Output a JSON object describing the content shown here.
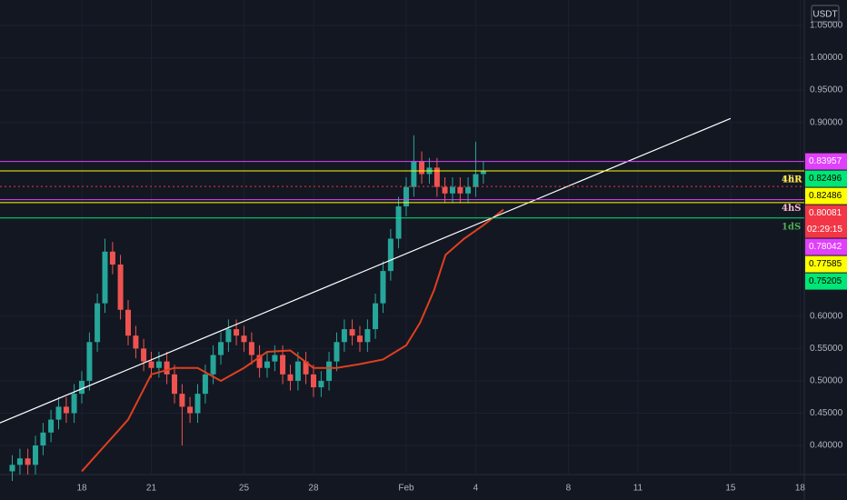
{
  "chart_data": {
    "type": "candlestick",
    "currency": "USDT",
    "background": "#131722",
    "up_color": "#26a69a",
    "down_color": "#ef5350",
    "grid": true,
    "xlim": [
      14.47,
      49.18
    ],
    "ylim": [
      0.355,
      1.0894
    ],
    "xticks": [
      {
        "value": 18,
        "label": "18"
      },
      {
        "value": 21,
        "label": "21"
      },
      {
        "value": 25,
        "label": "25"
      },
      {
        "value": 28,
        "label": "28"
      },
      {
        "value": 32,
        "label": "Feb"
      },
      {
        "value": 35,
        "label": "4"
      },
      {
        "value": 39,
        "label": "8"
      },
      {
        "value": 42,
        "label": "11"
      },
      {
        "value": 46,
        "label": "15"
      },
      {
        "value": 49,
        "label": "18"
      }
    ],
    "yticks": [
      {
        "value": 1.05,
        "label": "1.05000"
      },
      {
        "value": 1.0,
        "label": "1.00000"
      },
      {
        "value": 0.95,
        "label": "0.95000"
      },
      {
        "value": 0.9,
        "label": "0.90000"
      },
      {
        "value": 0.6,
        "label": "0.60000"
      },
      {
        "value": 0.55,
        "label": "0.55000"
      },
      {
        "value": 0.5,
        "label": "0.50000"
      },
      {
        "value": 0.45,
        "label": "0.45000"
      },
      {
        "value": 0.4,
        "label": "0.40000"
      }
    ],
    "candles": {
      "x": [
        15,
        15.33,
        15.67,
        16,
        16.33,
        16.67,
        17,
        17.33,
        17.67,
        18,
        18.33,
        18.67,
        19,
        19.33,
        19.67,
        20,
        20.33,
        20.67,
        21,
        21.33,
        21.67,
        22,
        22.33,
        22.67,
        23,
        23.33,
        23.67,
        24,
        24.33,
        24.67,
        25,
        25.33,
        25.67,
        26,
        26.33,
        26.67,
        27,
        27.33,
        27.67,
        28,
        28.33,
        28.67,
        29,
        29.33,
        29.67,
        30,
        30.33,
        30.67,
        31,
        31.33,
        31.67,
        32,
        32.33,
        32.67,
        33,
        33.33,
        33.67,
        34,
        34.33,
        34.67,
        35,
        35.33
      ],
      "open": [
        0.36,
        0.37,
        0.38,
        0.37,
        0.4,
        0.42,
        0.44,
        0.46,
        0.45,
        0.48,
        0.5,
        0.56,
        0.62,
        0.7,
        0.68,
        0.61,
        0.57,
        0.55,
        0.53,
        0.52,
        0.53,
        0.51,
        0.48,
        0.46,
        0.45,
        0.48,
        0.51,
        0.54,
        0.56,
        0.58,
        0.57,
        0.56,
        0.54,
        0.52,
        0.53,
        0.54,
        0.51,
        0.5,
        0.53,
        0.51,
        0.49,
        0.5,
        0.53,
        0.56,
        0.58,
        0.57,
        0.56,
        0.58,
        0.62,
        0.67,
        0.72,
        0.77,
        0.8,
        0.84,
        0.82,
        0.83,
        0.8,
        0.79,
        0.8,
        0.79,
        0.8,
        0.82
      ],
      "high": [
        0.385,
        0.395,
        0.395,
        0.415,
        0.435,
        0.455,
        0.475,
        0.475,
        0.495,
        0.515,
        0.575,
        0.635,
        0.72,
        0.715,
        0.695,
        0.625,
        0.585,
        0.565,
        0.545,
        0.545,
        0.545,
        0.525,
        0.495,
        0.475,
        0.495,
        0.525,
        0.555,
        0.575,
        0.595,
        0.595,
        0.585,
        0.575,
        0.555,
        0.545,
        0.555,
        0.555,
        0.525,
        0.545,
        0.545,
        0.525,
        0.515,
        0.545,
        0.575,
        0.595,
        0.595,
        0.585,
        0.595,
        0.635,
        0.685,
        0.735,
        0.785,
        0.815,
        0.88,
        0.855,
        0.845,
        0.845,
        0.815,
        0.815,
        0.815,
        0.815,
        0.87,
        0.84
      ],
      "low": [
        0.345,
        0.355,
        0.355,
        0.355,
        0.385,
        0.405,
        0.425,
        0.435,
        0.435,
        0.465,
        0.485,
        0.545,
        0.605,
        0.665,
        0.595,
        0.555,
        0.535,
        0.515,
        0.505,
        0.505,
        0.495,
        0.465,
        0.4,
        0.435,
        0.435,
        0.465,
        0.495,
        0.525,
        0.545,
        0.555,
        0.545,
        0.525,
        0.505,
        0.505,
        0.515,
        0.495,
        0.485,
        0.485,
        0.495,
        0.475,
        0.475,
        0.485,
        0.515,
        0.545,
        0.555,
        0.545,
        0.545,
        0.565,
        0.605,
        0.655,
        0.705,
        0.755,
        0.785,
        0.805,
        0.805,
        0.785,
        0.775,
        0.775,
        0.775,
        0.775,
        0.785,
        0.805
      ],
      "close": [
        0.37,
        0.38,
        0.37,
        0.4,
        0.42,
        0.44,
        0.46,
        0.45,
        0.48,
        0.5,
        0.56,
        0.62,
        0.7,
        0.68,
        0.61,
        0.57,
        0.55,
        0.53,
        0.52,
        0.53,
        0.51,
        0.48,
        0.46,
        0.45,
        0.48,
        0.51,
        0.54,
        0.56,
        0.58,
        0.57,
        0.56,
        0.54,
        0.52,
        0.53,
        0.54,
        0.51,
        0.5,
        0.53,
        0.51,
        0.49,
        0.5,
        0.53,
        0.56,
        0.58,
        0.57,
        0.56,
        0.58,
        0.62,
        0.67,
        0.72,
        0.77,
        0.8,
        0.84,
        0.82,
        0.83,
        0.8,
        0.79,
        0.8,
        0.79,
        0.8,
        0.82,
        0.825
      ]
    },
    "moving_average": {
      "color": "#e0401f",
      "x": [
        18,
        19,
        20,
        21,
        22,
        23,
        24,
        25,
        26,
        27,
        28,
        29,
        30,
        31,
        32,
        32.6,
        33.2,
        33.7,
        34.5,
        35.3,
        36.2
      ],
      "values": [
        0.36,
        0.4,
        0.44,
        0.51,
        0.52,
        0.52,
        0.5,
        0.52,
        0.545,
        0.547,
        0.52,
        0.52,
        0.526,
        0.533,
        0.555,
        0.59,
        0.64,
        0.695,
        0.72,
        0.74,
        0.765
      ]
    },
    "trendline": {
      "color": "#ffffff",
      "x": [
        14.47,
        46
      ],
      "values": [
        0.435,
        0.906
      ]
    },
    "levels": [
      {
        "value": 0.83957,
        "color": "#e040fb",
        "text_color": "#ffffff"
      },
      {
        "value": 0.82496,
        "color": "#00e676",
        "text_color": "#000000",
        "tag": "1dR",
        "tag_color": "#8a7fa8"
      },
      {
        "value": 0.82486,
        "color": "#ffff00",
        "text_color": "#000000",
        "tag": "4hR",
        "tag_color": "#ffeb3b"
      },
      {
        "value": 0.80081,
        "color": "#f23645",
        "text_color": "#ffffff",
        "dashed": true,
        "countdown": "02:29:15"
      },
      {
        "value": 0.78042,
        "color": "#e040fb",
        "text_color": "#ffffff",
        "tag": "4hS",
        "tag_color": "#f8bbd0"
      },
      {
        "value": 0.77585,
        "color": "#ffff00",
        "text_color": "#000000"
      },
      {
        "value": 0.75205,
        "color": "#00e676",
        "text_color": "#000000",
        "tag": "1dS",
        "tag_color": "#4caf50"
      }
    ]
  }
}
